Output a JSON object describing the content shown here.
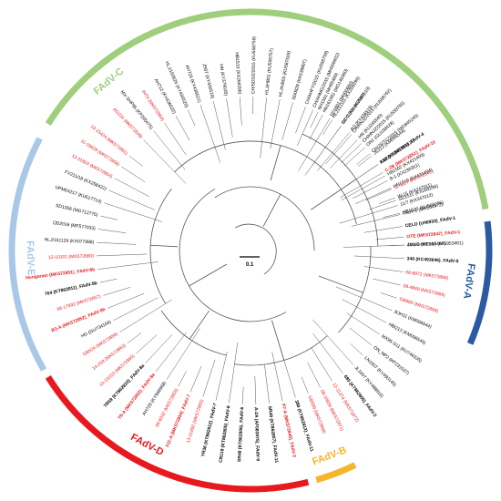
{
  "scale_bar": {
    "label": "0.1"
  },
  "colors": {
    "normal": "#000000",
    "highlight": "#e8191e",
    "branch": "#555555"
  },
  "clades": [
    {
      "name": "FAdV-C",
      "color": "#9fce7d",
      "from": 212,
      "to": 350,
      "label_at": 230
    },
    {
      "name": "FAdV-A",
      "color": "#2b5aa3",
      "from": 353,
      "to": 383,
      "label_at": 368
    },
    {
      "name": "FAdV-B",
      "color": "#f5b52d",
      "from": 64,
      "to": 74,
      "label_at": 69
    },
    {
      "name": "FAdV-D",
      "color": "#e8191e",
      "from": 76,
      "to": 148,
      "label_at": 118
    },
    {
      "name": "FAdV-E",
      "color": "#a9c8e8",
      "from": 150,
      "to": 208,
      "label_at": 178
    }
  ],
  "leaves": [
    {
      "label": "HB1510 (KU569296)",
      "angle": 346,
      "style": "normal"
    },
    {
      "label": "SD1511 (KX269296)",
      "angle": 341,
      "style": "normal"
    },
    {
      "label": "HN1510 (KX421404)",
      "angle": 336,
      "style": "normal"
    },
    {
      "label": "HB1502 (KX421403)",
      "angle": 331,
      "style": "normal"
    },
    {
      "label": "ZJ2015 (MF351611)",
      "angle": 326,
      "style": "normal"
    },
    {
      "label": "CH/JS/TC/2015 (MG845245)",
      "angle": 321,
      "style": "normal"
    },
    {
      "label": "CH/HNJZ/2015 (KU558760)",
      "angle": 316,
      "style": "normal"
    },
    {
      "label": "CH/HNJZ/2015 (KU558762)",
      "angle": 311,
      "style": "normal"
    },
    {
      "label": "GX-1 (MH442589)",
      "angle": 306,
      "style": "normal"
    },
    {
      "label": "SD1601 (MH00660)",
      "angle": 301,
      "style": "normal"
    },
    {
      "label": "NH1501 (MH05460)",
      "angle": 296,
      "style": "normal"
    },
    {
      "label": "CH/AHFY/2015 (KU558758)",
      "angle": 291,
      "style": "normal"
    },
    {
      "label": "SD0828 (KK639807)",
      "angle": 286,
      "style": "normal"
    },
    {
      "label": "HLJ/HB03 (KU587519)",
      "angle": 281,
      "style": "normal"
    },
    {
      "label": "HLJ/HB01 (KU558757)",
      "angle": 276,
      "style": "normal"
    },
    {
      "label": "CH/SDDZ/2015 (KU558759)",
      "angle": 271,
      "style": "normal"
    },
    {
      "label": "HB1510 (KX269296)",
      "angle": 266,
      "style": "normal"
    },
    {
      "label": "HN (KY379035)",
      "angle": 261,
      "style": "normal"
    },
    {
      "label": "JS07 (KY436519)",
      "angle": 256,
      "style": "normal"
    },
    {
      "label": "AH726 (KY436521)",
      "angle": 251,
      "style": "normal"
    },
    {
      "label": "HLJ/150626 (KY436520)",
      "angle": 246,
      "style": "normal"
    },
    {
      "label": "AH712 (KY436522)",
      "angle": 241,
      "style": "normal"
    },
    {
      "label": "INT4 (MK572850)",
      "angle": 236,
      "style": "highlight"
    },
    {
      "label": "MX-SHP95 (KP295475)",
      "angle": 231,
      "style": "normal"
    },
    {
      "label": "AG234 (MK572849)",
      "angle": 226,
      "style": "highlight"
    },
    {
      "label": "13-15424 (MK572861)",
      "angle": 218,
      "style": "highlight"
    },
    {
      "label": "11-16629 (MK572856)",
      "angle": 213,
      "style": "highlight"
    },
    {
      "label": "13-21824 (MK572864)",
      "angle": 208,
      "style": "highlight"
    },
    {
      "label": "FV211/18 (KX258422)",
      "angle": 203,
      "style": "normal"
    },
    {
      "label": "UPM04217 (KU517714)",
      "angle": 198,
      "style": "normal"
    },
    {
      "label": "SD1356 (MG712775)",
      "angle": 193,
      "style": "normal"
    },
    {
      "label": "QD2016 (MF577033)",
      "angle": 188,
      "style": "normal"
    },
    {
      "label": "HLJ/151129 (KX077988)",
      "angle": 183,
      "style": "normal"
    },
    {
      "label": "12-10101 (MK572860)",
      "angle": 178,
      "style": "highlight"
    },
    {
      "label": "Hungarian (MK572851)_FAdV-8b",
      "angle": 173,
      "style": "highlight-bold"
    },
    {
      "label": "764 (KT862811)_FAdV-8b",
      "angle": 168,
      "style": "bold"
    },
    {
      "label": "08-17832 (MK572857)",
      "angle": 163,
      "style": "highlight"
    },
    {
      "label": "B3-A (MK572852)_FAdV-8b",
      "angle": 158,
      "style": "highlight-bold"
    },
    {
      "label": "HG (GU734104)",
      "angle": 153,
      "style": "normal"
    },
    {
      "label": "GB524 (MK572858)",
      "angle": 148,
      "style": "highlight"
    },
    {
      "label": "14-259 (MK572863)",
      "angle": 143,
      "style": "highlight"
    },
    {
      "label": "13-19153 (MK572865)",
      "angle": 138,
      "style": "highlight"
    },
    {
      "label": "TR59 (KT862810)_FAdV-8a",
      "angle": 133,
      "style": "bold"
    },
    {
      "label": "T8-A (MK572853)_FAdV-8a",
      "angle": 128,
      "style": "highlight-bold"
    },
    {
      "label": "AH720 (KY968968)",
      "angle": 123,
      "style": "normal"
    },
    {
      "label": "09-6032 (MK572855)",
      "angle": 118,
      "style": "highlight"
    },
    {
      "label": "X11-A (MK572854)_FAdV-7",
      "angle": 113,
      "style": "highlight-bold"
    },
    {
      "label": "13-21650 (MK572862)",
      "angle": 108,
      "style": "highlight"
    },
    {
      "label": "YR36 (KT862812)_FAdV-7",
      "angle": 103,
      "style": "bold"
    },
    {
      "label": "CR119 (KT862805)_FAdV-6",
      "angle": 98,
      "style": "bold"
    },
    {
      "label": "SR48 (KT862806)_FAdV-6",
      "angle": 93,
      "style": "bold"
    },
    {
      "label": "A-2A (AF083975)_FAdV-9",
      "angle": 88,
      "style": "bold"
    },
    {
      "label": "SR49 (KT862807)_FAdV-11",
      "angle": 83,
      "style": "bold"
    },
    {
      "label": "P7-A (MK572846)_FAdV-2",
      "angle": 78,
      "style": "highlight-bold"
    },
    {
      "label": "380 (KT862812)_FAdV-11",
      "angle": 73,
      "style": "bold"
    },
    {
      "label": "GB599 (MK572868)",
      "angle": 68,
      "style": "highlight"
    },
    {
      "label": "08-10650 (MK572871)",
      "angle": 63,
      "style": "highlight"
    },
    {
      "label": "12-11374 (MK572872)",
      "angle": 58,
      "style": "highlight"
    },
    {
      "label": "685 (KT862805)_FAdV-2",
      "angle": 53,
      "style": "bold"
    },
    {
      "label": "JL1607 (KY488916)",
      "angle": 48,
      "style": "normal"
    },
    {
      "label": "LN1607 (KY490145)",
      "angle": 43,
      "style": "normal"
    },
    {
      "label": "ON_NP2 (KP231537)",
      "angle": 38,
      "style": "normal"
    },
    {
      "label": "MX95-S11 (KU746335)",
      "angle": 33,
      "style": "normal"
    },
    {
      "label": "HBQ12 (KM096545)",
      "angle": 28,
      "style": "normal"
    },
    {
      "label": "BJH11 (KM096544)",
      "angle": 23,
      "style": "normal"
    },
    {
      "label": "GB880 (MK572868)",
      "angle": 18,
      "style": "highlight"
    },
    {
      "label": "08-4869 (MK572869)",
      "angle": 13,
      "style": "highlight"
    },
    {
      "label": "08-8872 (MK572869)",
      "angle": 8,
      "style": "highlight"
    },
    {
      "label": "340 (KC493646)_FAdV-5",
      "angle": 3,
      "style": "bold"
    },
    {
      "label": "40440-M/2015 (MG953401)",
      "angle": -2,
      "style": "normal"
    },
    {
      "label": "JM1/1 (MF168407)",
      "angle": 358,
      "style": "normal"
    },
    {
      "label": "OTE (MK572847)_FAdV-1",
      "angle": 355,
      "style": "highlight-bold"
    },
    {
      "label": "CELO (U46933)_FAdV-1",
      "angle": 351,
      "style": "bold"
    },
    {
      "label": "FAdV-1 (MK550972)",
      "angle": 346.5,
      "style": "normal"
    },
    {
      "label": "11/7 (KX247012)",
      "angle": 343,
      "style": "normal"
    },
    {
      "label": "W-15 (KX247011)",
      "angle": 340,
      "style": "normal"
    },
    {
      "label": "11-1127 (MK572848)",
      "angle": 336.5,
      "style": "highlight"
    },
    {
      "label": "B-1 (KX238361)",
      "angle": 333,
      "style": "normal"
    },
    {
      "label": "C-2B (MK572851)_FAdV-10",
      "angle": 329.5,
      "style": "highlight-bold"
    },
    {
      "label": "K65 (KE861981)_FAdV-4",
      "angle": 326,
      "style": "bold"
    },
    {
      "label": "JSJ13 (KM096544)",
      "angle": 322,
      "style": "normal"
    },
    {
      "label": "ON1 (GU188428)",
      "angle": 318,
      "style": "normal"
    },
    {
      "label": "HN (KU245540)",
      "angle": 314,
      "style": "normal"
    },
    {
      "label": "AQ (KY436519)",
      "angle": 310,
      "style": "normal"
    },
    {
      "label": "SCY1501 (KU587519)",
      "angle": 306,
      "style": "normal"
    },
    {
      "label": "HLJ151111 (KX269296)",
      "angle": 302,
      "style": "normal"
    },
    {
      "label": "HN161002 (MG148360)",
      "angle": 298,
      "style": "normal"
    },
    {
      "label": "CH/AHMG/2015 (MH006602)",
      "angle": 294,
      "style": "normal"
    }
  ]
}
